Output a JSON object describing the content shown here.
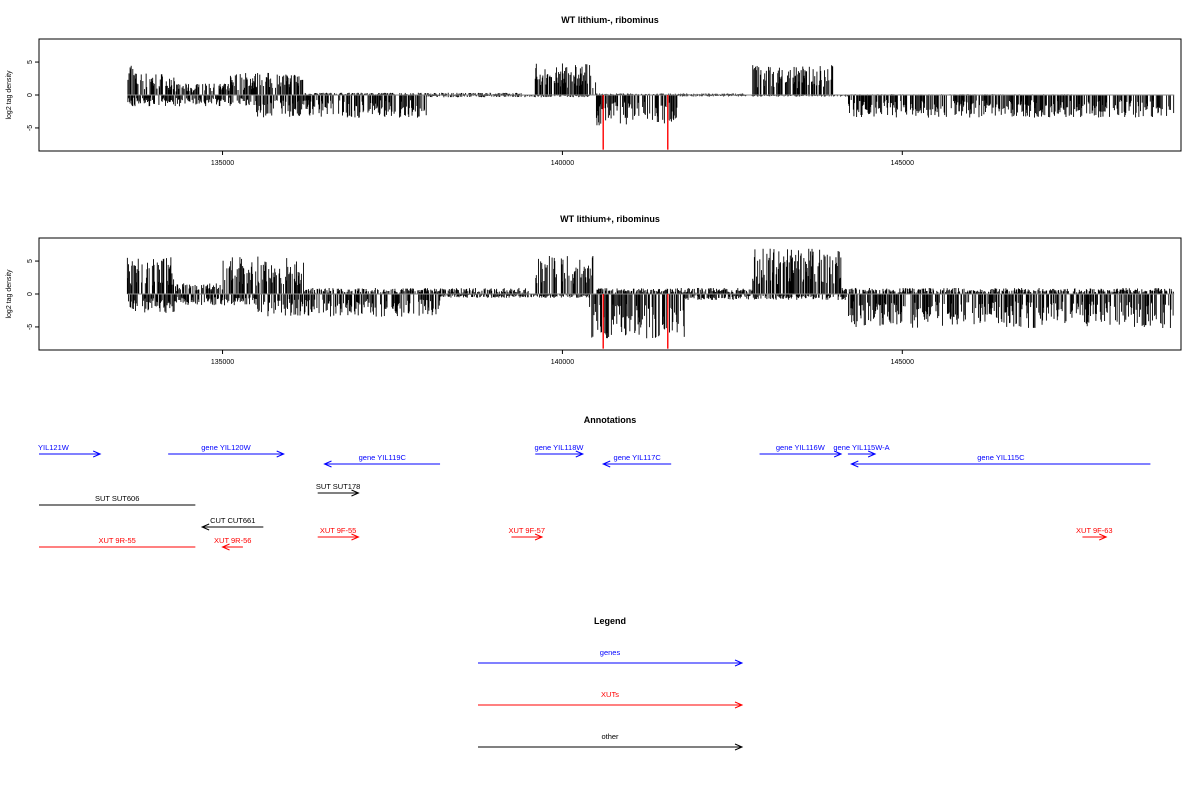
{
  "colors": {
    "gene": "#0000ff",
    "xut": "#ff0000",
    "other": "#000000",
    "bar": "#000000",
    "peak": "#ff0000",
    "baseline": "#888888"
  },
  "chart_data": [
    {
      "type": "bar",
      "title": "WT lithium-, ribominus",
      "ylabel": "log2 tag density",
      "xlim": [
        132300,
        149100
      ],
      "ylim": [
        -8.5,
        8.5
      ],
      "xticks": [
        135000,
        140000,
        145000
      ],
      "yticks": [
        5,
        0,
        -5
      ],
      "profile": [
        {
          "x0": 133600,
          "x1": 133700,
          "y": 4.5
        },
        {
          "x0": 133700,
          "x1": 134300,
          "y": 3.0
        },
        {
          "x0": 134300,
          "x1": 135100,
          "y": 1.5
        },
        {
          "x0": 135100,
          "x1": 136200,
          "y": 3.0
        },
        {
          "x0": 136200,
          "x1": 139400,
          "y": 0.3
        },
        {
          "x0": 139600,
          "x1": 140500,
          "y": 4.2
        },
        {
          "x0": 140500,
          "x1": 142700,
          "y": 0.2
        },
        {
          "x0": 142800,
          "x1": 144000,
          "y": 4.0
        },
        {
          "x0": 144000,
          "x1": 147500,
          "y": 0.1
        },
        {
          "x0": 133600,
          "x1": 135500,
          "y": -1.5
        },
        {
          "x0": 135500,
          "x1": 138000,
          "y": -3.0
        },
        {
          "x0": 138000,
          "x1": 140400,
          "y": -0.3
        },
        {
          "x0": 140500,
          "x1": 141700,
          "y": -4.0
        },
        {
          "x0": 141700,
          "x1": 144200,
          "y": -0.2
        },
        {
          "x0": 144200,
          "x1": 149000,
          "y": -3.0
        }
      ],
      "peaks": [
        {
          "x": 140600,
          "y": -8.3
        },
        {
          "x": 141550,
          "y": -8.3
        }
      ]
    },
    {
      "type": "bar",
      "title": "WT lithium+, ribominus",
      "ylabel": "log2 tag density",
      "xlim": [
        132300,
        149100
      ],
      "ylim": [
        -8.5,
        8.5
      ],
      "xticks": [
        135000,
        140000,
        145000
      ],
      "yticks": [
        5,
        0,
        -5
      ],
      "profile": [
        {
          "x0": 133600,
          "x1": 134300,
          "y": 5.0
        },
        {
          "x0": 134300,
          "x1": 135000,
          "y": 1.5
        },
        {
          "x0": 135000,
          "x1": 136200,
          "y": 5.0
        },
        {
          "x0": 136200,
          "x1": 139500,
          "y": 0.8
        },
        {
          "x0": 139600,
          "x1": 140500,
          "y": 5.2
        },
        {
          "x0": 140500,
          "x1": 142800,
          "y": 0.8
        },
        {
          "x0": 142800,
          "x1": 144100,
          "y": 6.0
        },
        {
          "x0": 144100,
          "x1": 149000,
          "y": 0.8
        },
        {
          "x0": 133600,
          "x1": 134300,
          "y": -2.5
        },
        {
          "x0": 134300,
          "x1": 135500,
          "y": -1.5
        },
        {
          "x0": 135500,
          "x1": 138200,
          "y": -3.0
        },
        {
          "x0": 138200,
          "x1": 140400,
          "y": -0.5
        },
        {
          "x0": 140400,
          "x1": 141800,
          "y": -6.0
        },
        {
          "x0": 141800,
          "x1": 144200,
          "y": -0.8
        },
        {
          "x0": 144200,
          "x1": 149000,
          "y": -4.5
        }
      ],
      "peaks": [
        {
          "x": 140600,
          "y": -8.3
        },
        {
          "x": 141550,
          "y": -8.3
        }
      ]
    }
  ],
  "annotations": {
    "title": "Annotations",
    "items": [
      {
        "label": "YIL121W",
        "kind": "gene",
        "strand": "+",
        "start": 132300,
        "end": 133200,
        "row": 0
      },
      {
        "label": "gene YIL120W",
        "kind": "gene",
        "strand": "+",
        "start": 134200,
        "end": 135900,
        "row": 0
      },
      {
        "label": "gene YIL119C",
        "kind": "gene",
        "strand": "-",
        "start": 136500,
        "end": 138200,
        "row": 1
      },
      {
        "label": "gene YIL118W",
        "kind": "gene",
        "strand": "+",
        "start": 139600,
        "end": 140300,
        "row": 0
      },
      {
        "label": "gene YIL117C",
        "kind": "gene",
        "strand": "-",
        "start": 140600,
        "end": 141600,
        "row": 1
      },
      {
        "label": "gene YIL116W",
        "kind": "gene",
        "strand": "+",
        "start": 142900,
        "end": 144100,
        "row": 0
      },
      {
        "label": "gene YIL115W-A",
        "kind": "gene",
        "strand": "+",
        "start": 144200,
        "end": 144600,
        "row": 0
      },
      {
        "label": "gene YIL115C",
        "kind": "gene",
        "strand": "-",
        "start": 144250,
        "end": 148650,
        "row": 1
      },
      {
        "label": "SUT SUT178",
        "kind": "other",
        "strand": "+",
        "start": 136400,
        "end": 137000,
        "row": 2
      },
      {
        "label": "SUT SUT606",
        "kind": "other",
        "strand": "",
        "start": 132300,
        "end": 134600,
        "row": 3
      },
      {
        "label": "CUT CUT661",
        "kind": "other",
        "strand": "-",
        "start": 134700,
        "end": 135600,
        "row": 4
      },
      {
        "label": "XUT 9F-55",
        "kind": "xut",
        "strand": "+",
        "start": 136400,
        "end": 137000,
        "row": 5
      },
      {
        "label": "XUT 9F-57",
        "kind": "xut",
        "strand": "+",
        "start": 139250,
        "end": 139700,
        "row": 5
      },
      {
        "label": "XUT 9F-63",
        "kind": "xut",
        "strand": "+",
        "start": 147650,
        "end": 148000,
        "row": 5
      },
      {
        "label": "XUT 9R-55",
        "kind": "xut",
        "strand": "",
        "start": 132300,
        "end": 134600,
        "row": 6
      },
      {
        "label": "XUT 9R-56",
        "kind": "xut",
        "strand": "-",
        "start": 135000,
        "end": 135300,
        "row": 6
      }
    ]
  },
  "legend": {
    "title": "Legend",
    "items": [
      {
        "label": "genes",
        "kind": "gene"
      },
      {
        "label": "XUTs",
        "kind": "xut"
      },
      {
        "label": "other",
        "kind": "other"
      }
    ]
  }
}
